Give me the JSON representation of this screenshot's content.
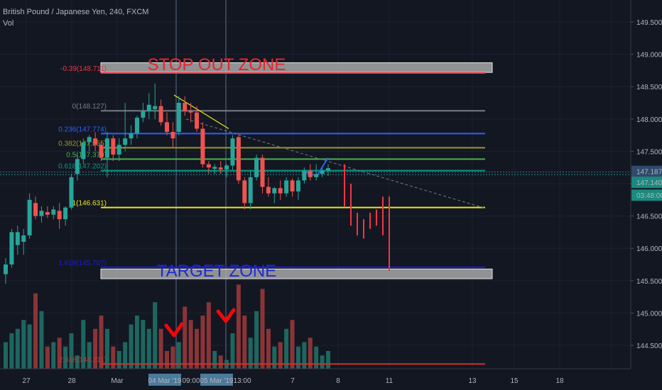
{
  "header": {
    "symbol": "British Pound / Japanese Yen, 240, FXCM",
    "volume_label": "Vol"
  },
  "colors": {
    "background": "#131722",
    "up": "#26a69a",
    "down": "#ef5350",
    "vol_up": "#1e6660",
    "vol_down": "#8a3437"
  },
  "chart_data": {
    "type": "candlestick",
    "title": "British Pound / Japanese Yen, 240, FXCM",
    "y_ticks": [
      "149.500",
      "149.000",
      "148.500",
      "148.000",
      "147.500",
      "147.000",
      "146.500",
      "146.000",
      "145.500",
      "145.000",
      "144.500"
    ],
    "x_ticks": [
      {
        "label": "27",
        "hl": false
      },
      {
        "label": "28",
        "hl": false
      },
      {
        "label": "Mar",
        "hl": false
      },
      {
        "label": "04 Mar '19",
        "hl": true
      },
      {
        "label": "09:00",
        "hl": false
      },
      {
        "label": "05 Mar '19",
        "hl": true
      },
      {
        "label": "13:00",
        "hl": false
      },
      {
        "label": "7",
        "hl": false
      },
      {
        "label": "8",
        "hl": false
      },
      {
        "label": "11",
        "hl": false
      },
      {
        "label": "13",
        "hl": false
      },
      {
        "label": "15",
        "hl": false
      },
      {
        "label": "18",
        "hl": false
      }
    ],
    "price_badges": {
      "last": "147.187",
      "current": "147.140",
      "countdown": "03:48:00"
    },
    "fib_levels": [
      {
        "label": "-0.39(148.711)",
        "price": 148.711,
        "color": "#f23645"
      },
      {
        "label": "0(148.127)",
        "price": 148.127,
        "color": "#787b86"
      },
      {
        "label": "0.236(147.774)",
        "price": 147.774,
        "color": "#2962ff"
      },
      {
        "label": "0.382(147.555)",
        "price": 147.555,
        "color": "#9c9c1c"
      },
      {
        "label": "0.5(147.379)",
        "price": 147.379,
        "color": "#4caf50"
      },
      {
        "label": "0.618(147.202)",
        "price": 147.202,
        "color": "#089981"
      },
      {
        "label": "1(146.631)",
        "price": 146.631,
        "color": "#e8e81a"
      },
      {
        "label": "1.618(145.707)",
        "price": 145.707,
        "color": "#1c1cd6"
      },
      {
        "label": "2.618(144.211)",
        "price": 144.211,
        "color": "#c8362b"
      }
    ],
    "zones": [
      {
        "label": "STOP OUT ZONE",
        "top": 148.87,
        "bottom": 148.72,
        "text_color": "#e8262d"
      },
      {
        "label": "TARGET ZONE",
        "top": 145.68,
        "bottom": 145.53,
        "text_color": "#1c2bd6"
      }
    ],
    "candles": [
      {
        "o": 145.6,
        "h": 145.85,
        "l": 145.45,
        "c": 145.75
      },
      {
        "o": 145.75,
        "h": 146.3,
        "l": 145.7,
        "c": 146.25
      },
      {
        "o": 146.05,
        "h": 146.35,
        "l": 145.9,
        "c": 146.25
      },
      {
        "o": 146.1,
        "h": 146.3,
        "l": 145.9,
        "c": 146.2
      },
      {
        "o": 146.2,
        "h": 146.85,
        "l": 146.15,
        "c": 146.75
      },
      {
        "o": 146.7,
        "h": 146.8,
        "l": 146.45,
        "c": 146.5
      },
      {
        "o": 146.5,
        "h": 146.65,
        "l": 146.4,
        "c": 146.58
      },
      {
        "o": 146.56,
        "h": 146.65,
        "l": 146.47,
        "c": 146.52
      },
      {
        "o": 146.52,
        "h": 146.65,
        "l": 146.45,
        "c": 146.6
      },
      {
        "o": 146.58,
        "h": 146.7,
        "l": 146.3,
        "c": 146.45
      },
      {
        "o": 146.45,
        "h": 146.65,
        "l": 146.35,
        "c": 146.63
      },
      {
        "o": 146.63,
        "h": 147.15,
        "l": 146.6,
        "c": 147.1
      },
      {
        "o": 147.15,
        "h": 147.45,
        "l": 147.05,
        "c": 147.38
      },
      {
        "o": 147.38,
        "h": 147.7,
        "l": 147.3,
        "c": 147.64
      },
      {
        "o": 147.64,
        "h": 147.75,
        "l": 147.5,
        "c": 147.72
      },
      {
        "o": 147.7,
        "h": 147.8,
        "l": 147.5,
        "c": 147.6
      },
      {
        "o": 147.6,
        "h": 147.65,
        "l": 147.35,
        "c": 147.4
      },
      {
        "o": 147.4,
        "h": 147.8,
        "l": 147.1,
        "c": 147.7
      },
      {
        "o": 147.7,
        "h": 147.75,
        "l": 147.35,
        "c": 147.45
      },
      {
        "o": 147.45,
        "h": 147.7,
        "l": 147.35,
        "c": 147.6
      },
      {
        "o": 147.6,
        "h": 148.25,
        "l": 147.5,
        "c": 147.7
      },
      {
        "o": 147.7,
        "h": 147.9,
        "l": 147.6,
        "c": 147.78
      },
      {
        "o": 147.78,
        "h": 148.05,
        "l": 147.7,
        "c": 148.02
      },
      {
        "o": 148.02,
        "h": 148.25,
        "l": 147.95,
        "c": 148.12
      },
      {
        "o": 148.12,
        "h": 148.4,
        "l": 148.0,
        "c": 148.22
      },
      {
        "o": 148.15,
        "h": 148.55,
        "l": 148.0,
        "c": 148.2
      },
      {
        "o": 148.2,
        "h": 148.3,
        "l": 147.9,
        "c": 147.95
      },
      {
        "o": 147.95,
        "h": 148.1,
        "l": 147.75,
        "c": 147.8
      },
      {
        "o": 147.8,
        "h": 147.95,
        "l": 147.55,
        "c": 147.7
      },
      {
        "o": 147.8,
        "h": 148.35,
        "l": 147.75,
        "c": 148.25
      },
      {
        "o": 148.25,
        "h": 148.35,
        "l": 148.05,
        "c": 148.12
      },
      {
        "o": 148.12,
        "h": 148.25,
        "l": 147.95,
        "c": 148.1
      },
      {
        "o": 148.1,
        "h": 148.2,
        "l": 147.8,
        "c": 147.85
      },
      {
        "o": 147.85,
        "h": 147.95,
        "l": 147.25,
        "c": 147.3
      },
      {
        "o": 147.3,
        "h": 147.35,
        "l": 147.15,
        "c": 147.25
      },
      {
        "o": 147.23,
        "h": 147.3,
        "l": 147.15,
        "c": 147.26
      },
      {
        "o": 147.25,
        "h": 147.35,
        "l": 147.15,
        "c": 147.22
      },
      {
        "o": 147.22,
        "h": 147.3,
        "l": 147.1,
        "c": 147.28
      },
      {
        "o": 147.28,
        "h": 147.75,
        "l": 147.2,
        "c": 147.7
      },
      {
        "o": 147.72,
        "h": 147.75,
        "l": 147.0,
        "c": 147.05
      },
      {
        "o": 147.05,
        "h": 147.1,
        "l": 146.6,
        "c": 146.7
      },
      {
        "o": 146.7,
        "h": 147.2,
        "l": 146.6,
        "c": 147.1
      },
      {
        "o": 147.1,
        "h": 147.45,
        "l": 147.05,
        "c": 147.4
      },
      {
        "o": 147.4,
        "h": 147.45,
        "l": 146.85,
        "c": 146.95
      },
      {
        "o": 146.95,
        "h": 147.1,
        "l": 146.8,
        "c": 146.85
      },
      {
        "o": 146.85,
        "h": 146.95,
        "l": 146.7,
        "c": 146.93
      },
      {
        "o": 146.93,
        "h": 147.05,
        "l": 146.75,
        "c": 146.85
      },
      {
        "o": 146.85,
        "h": 147.1,
        "l": 146.8,
        "c": 147.05
      },
      {
        "o": 147.05,
        "h": 147.08,
        "l": 146.8,
        "c": 146.88
      },
      {
        "o": 146.88,
        "h": 147.1,
        "l": 146.75,
        "c": 147.05
      },
      {
        "o": 147.05,
        "h": 147.25,
        "l": 147.0,
        "c": 147.2
      },
      {
        "o": 147.2,
        "h": 147.3,
        "l": 147.05,
        "c": 147.1
      },
      {
        "o": 147.1,
        "h": 147.3,
        "l": 147.05,
        "c": 147.15
      },
      {
        "o": 147.15,
        "h": 147.25,
        "l": 147.1,
        "c": 147.2
      },
      {
        "o": 147.2,
        "h": 147.3,
        "l": 147.12,
        "c": 147.24
      }
    ],
    "volumes": [
      0.3,
      0.4,
      0.45,
      0.55,
      0.5,
      0.85,
      0.65,
      0.25,
      0.3,
      0.35,
      0.25,
      0.4,
      0.15,
      0.55,
      0.3,
      0.45,
      0.6,
      0.45,
      0.25,
      0.2,
      0.3,
      0.5,
      0.6,
      0.55,
      0.45,
      0.75,
      0.45,
      0.2,
      0.25,
      0.3,
      0.7,
      0.55,
      0.45,
      0.6,
      0.75,
      0.2,
      0.15,
      0.1,
      0.4,
      0.95,
      0.6,
      0.35,
      0.65,
      0.9,
      0.45,
      0.25,
      0.3,
      0.45,
      0.55,
      0.25,
      0.3,
      0.35,
      0.25,
      0.15,
      0.2
    ],
    "projection_bars": [
      {
        "h": 147.3,
        "l": 146.65
      },
      {
        "h": 147.0,
        "l": 146.35
      },
      {
        "h": 146.55,
        "l": 146.2
      },
      {
        "h": 146.45,
        "l": 146.15
      },
      {
        "h": 146.55,
        "l": 146.3
      },
      {
        "h": 146.6,
        "l": 146.35
      },
      {
        "h": 146.8,
        "l": 146.2
      },
      {
        "h": 146.8,
        "l": 145.65
      }
    ]
  }
}
